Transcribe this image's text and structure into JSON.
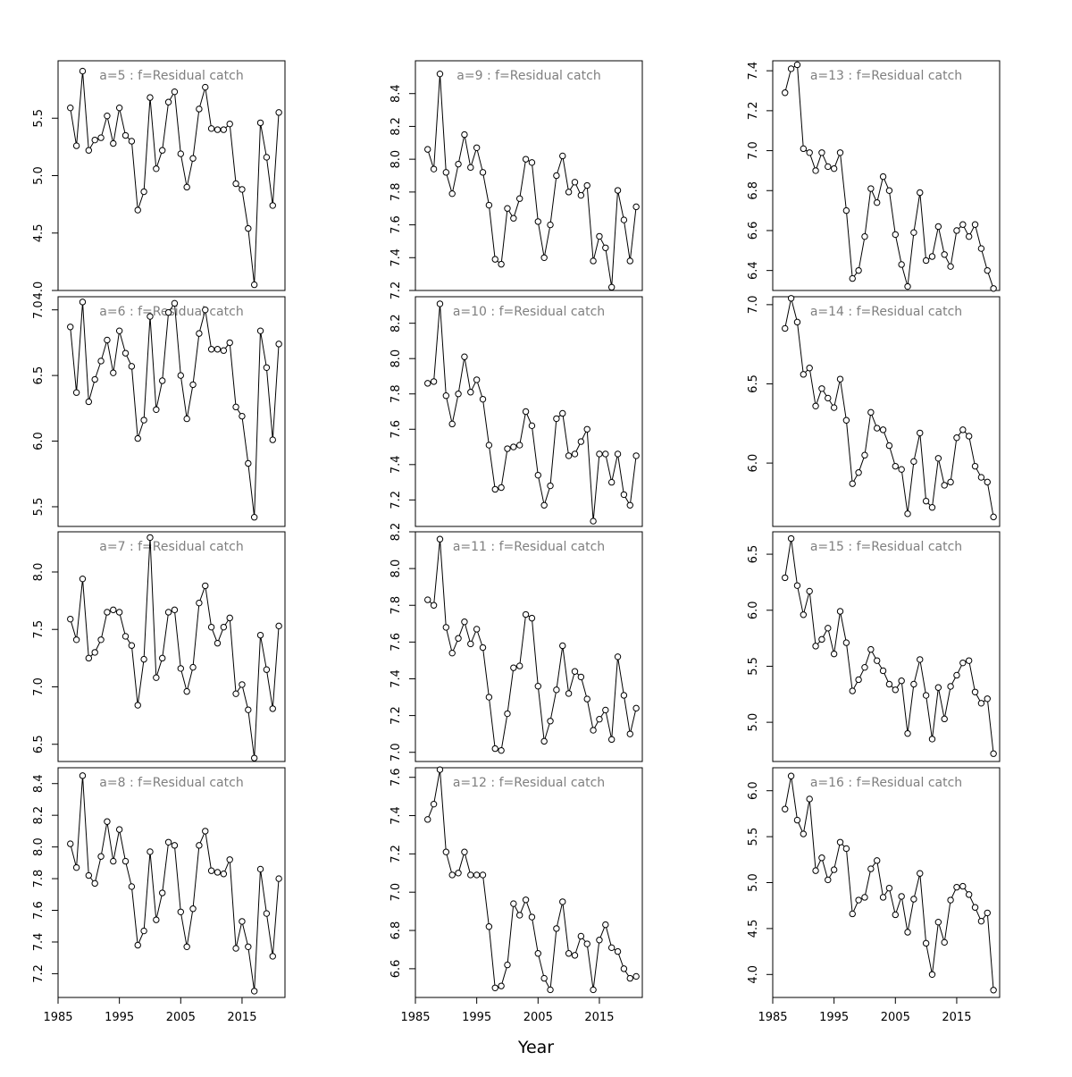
{
  "xlabel": "Year",
  "years": [
    1987,
    1988,
    1989,
    1990,
    1991,
    1992,
    1993,
    1994,
    1995,
    1996,
    1997,
    1998,
    1999,
    2000,
    2001,
    2002,
    2003,
    2004,
    2005,
    2006,
    2007,
    2008,
    2009,
    2010,
    2011,
    2012,
    2013,
    2014,
    2015,
    2016,
    2017,
    2018,
    2019,
    2020,
    2021
  ],
  "chart_data": [
    {
      "type": "line",
      "title": "a=5  :  f=Residual catch",
      "xlim": [
        1985,
        2022
      ],
      "ylim": [
        4.0,
        6.0
      ],
      "yticks": [
        4.0,
        4.5,
        5.0,
        5.5
      ],
      "xticks": [
        1985,
        1995,
        2005,
        2015
      ],
      "y": [
        5.59,
        5.26,
        5.91,
        5.22,
        5.31,
        5.33,
        5.52,
        5.28,
        5.59,
        5.35,
        5.3,
        4.7,
        4.86,
        5.68,
        5.06,
        5.22,
        5.64,
        5.73,
        5.19,
        4.9,
        5.15,
        5.58,
        5.77,
        5.41,
        5.4,
        5.4,
        5.45,
        4.93,
        4.88,
        4.54,
        4.05,
        5.46,
        5.16,
        4.74,
        5.55
      ]
    },
    {
      "type": "line",
      "title": "a=9  :  f=Residual catch",
      "xlim": [
        1985,
        2022
      ],
      "ylim": [
        7.2,
        8.6
      ],
      "yticks": [
        7.2,
        7.4,
        7.6,
        7.8,
        8.0,
        8.2,
        8.4
      ],
      "xticks": [
        1985,
        1995,
        2005,
        2015
      ],
      "y": [
        8.06,
        7.94,
        8.52,
        7.92,
        7.79,
        7.97,
        8.15,
        7.95,
        8.07,
        7.92,
        7.72,
        7.39,
        7.36,
        7.7,
        7.64,
        7.76,
        8.0,
        7.98,
        7.62,
        7.4,
        7.6,
        7.9,
        8.02,
        7.8,
        7.86,
        7.78,
        7.84,
        7.38,
        7.53,
        7.46,
        7.22,
        7.81,
        7.63,
        7.38,
        7.71
      ]
    },
    {
      "type": "line",
      "title": "a=13  :  f=Residual catch",
      "xlim": [
        1985,
        2022
      ],
      "ylim": [
        6.3,
        7.45
      ],
      "yticks": [
        6.4,
        6.6,
        6.8,
        7.0,
        7.2,
        7.4
      ],
      "xticks": [
        1985,
        1995,
        2005,
        2015
      ],
      "y": [
        7.29,
        7.41,
        7.43,
        7.01,
        6.99,
        6.9,
        6.99,
        6.92,
        6.91,
        6.99,
        6.7,
        6.36,
        6.4,
        6.57,
        6.81,
        6.74,
        6.87,
        6.8,
        6.58,
        6.43,
        6.32,
        6.59,
        6.79,
        6.45,
        6.47,
        6.62,
        6.48,
        6.42,
        6.6,
        6.63,
        6.57,
        6.63,
        6.51,
        6.4,
        6.31
      ]
    },
    {
      "type": "line",
      "title": "a=6  :  f=Residual catch",
      "xlim": [
        1985,
        2022
      ],
      "ylim": [
        5.35,
        7.1
      ],
      "yticks": [
        5.5,
        6.0,
        6.5,
        7.0
      ],
      "xticks": [
        1985,
        1995,
        2005,
        2015
      ],
      "y": [
        6.87,
        6.37,
        7.06,
        6.3,
        6.47,
        6.61,
        6.77,
        6.52,
        6.84,
        6.67,
        6.57,
        6.02,
        6.16,
        6.95,
        6.24,
        6.46,
        6.98,
        7.05,
        6.5,
        6.17,
        6.43,
        6.82,
        7.0,
        6.7,
        6.7,
        6.69,
        6.75,
        6.26,
        6.19,
        5.83,
        5.42,
        6.84,
        6.56,
        6.01,
        6.74
      ]
    },
    {
      "type": "line",
      "title": "a=10  :  f=Residual catch",
      "xlim": [
        1985,
        2022
      ],
      "ylim": [
        7.05,
        8.35
      ],
      "yticks": [
        7.2,
        7.4,
        7.6,
        7.8,
        8.0,
        8.2
      ],
      "xticks": [
        1985,
        1995,
        2005,
        2015
      ],
      "y": [
        7.86,
        7.87,
        8.31,
        7.79,
        7.63,
        7.8,
        8.01,
        7.81,
        7.88,
        7.77,
        7.51,
        7.26,
        7.27,
        7.49,
        7.5,
        7.51,
        7.7,
        7.62,
        7.34,
        7.17,
        7.28,
        7.66,
        7.69,
        7.45,
        7.46,
        7.53,
        7.6,
        7.08,
        7.46,
        7.46,
        7.3,
        7.46,
        7.23,
        7.17,
        7.45
      ]
    },
    {
      "type": "line",
      "title": "a=14  :  f=Residual catch",
      "xlim": [
        1985,
        2022
      ],
      "ylim": [
        5.6,
        7.05
      ],
      "yticks": [
        6.0,
        6.5,
        7.0
      ],
      "xticks": [
        1985,
        1995,
        2005,
        2015
      ],
      "y": [
        6.85,
        7.04,
        6.89,
        6.56,
        6.6,
        6.36,
        6.47,
        6.41,
        6.35,
        6.53,
        6.27,
        5.87,
        5.94,
        6.05,
        6.32,
        6.22,
        6.21,
        6.11,
        5.98,
        5.96,
        5.68,
        6.01,
        6.19,
        5.76,
        5.72,
        6.03,
        5.86,
        5.88,
        6.16,
        6.21,
        6.17,
        5.98,
        5.91,
        5.88,
        5.66
      ]
    },
    {
      "type": "line",
      "title": "a=7  :  f=Residual catch",
      "xlim": [
        1985,
        2022
      ],
      "ylim": [
        6.35,
        8.35
      ],
      "yticks": [
        6.5,
        7.0,
        7.5,
        8.0
      ],
      "xticks": [
        1985,
        1995,
        2005,
        2015
      ],
      "y": [
        7.59,
        7.41,
        7.94,
        7.25,
        7.3,
        7.41,
        7.65,
        7.67,
        7.65,
        7.44,
        7.36,
        6.84,
        7.24,
        8.3,
        7.08,
        7.25,
        7.65,
        7.67,
        7.16,
        6.96,
        7.17,
        7.73,
        7.88,
        7.52,
        7.38,
        7.52,
        7.6,
        6.94,
        7.02,
        6.8,
        6.38,
        7.45,
        7.15,
        6.81,
        7.53
      ]
    },
    {
      "type": "line",
      "title": "a=11  :  f=Residual catch",
      "xlim": [
        1985,
        2022
      ],
      "ylim": [
        6.95,
        8.2
      ],
      "yticks": [
        7.0,
        7.2,
        7.4,
        7.6,
        7.8,
        8.0,
        8.2
      ],
      "xticks": [
        1985,
        1995,
        2005,
        2015
      ],
      "y": [
        7.83,
        7.8,
        8.16,
        7.68,
        7.54,
        7.62,
        7.71,
        7.59,
        7.67,
        7.57,
        7.3,
        7.02,
        7.01,
        7.21,
        7.46,
        7.47,
        7.75,
        7.73,
        7.36,
        7.06,
        7.17,
        7.34,
        7.58,
        7.32,
        7.44,
        7.41,
        7.29,
        7.12,
        7.18,
        7.23,
        7.07,
        7.52,
        7.31,
        7.1,
        7.24
      ]
    },
    {
      "type": "line",
      "title": "a=15  :  f=Residual catch",
      "xlim": [
        1985,
        2022
      ],
      "ylim": [
        4.65,
        6.7
      ],
      "yticks": [
        5.0,
        5.5,
        6.0,
        6.5
      ],
      "xticks": [
        1985,
        1995,
        2005,
        2015
      ],
      "y": [
        6.29,
        6.64,
        6.22,
        5.96,
        6.17,
        5.68,
        5.74,
        5.84,
        5.61,
        5.99,
        5.71,
        5.28,
        5.38,
        5.49,
        5.65,
        5.55,
        5.46,
        5.34,
        5.29,
        5.37,
        4.9,
        5.34,
        5.56,
        5.24,
        4.85,
        5.31,
        5.03,
        5.32,
        5.42,
        5.53,
        5.55,
        5.27,
        5.17,
        5.21,
        4.72
      ]
    },
    {
      "type": "line",
      "title": "a=8  :  f=Residual catch",
      "xlim": [
        1985,
        2022
      ],
      "ylim": [
        7.05,
        8.5
      ],
      "yticks": [
        7.2,
        7.4,
        7.6,
        7.8,
        8.0,
        8.2,
        8.4
      ],
      "xticks": [
        1985,
        1995,
        2005,
        2015
      ],
      "y": [
        8.02,
        7.87,
        8.45,
        7.82,
        7.77,
        7.94,
        8.16,
        7.91,
        8.11,
        7.91,
        7.75,
        7.38,
        7.47,
        7.97,
        7.54,
        7.71,
        8.03,
        8.01,
        7.59,
        7.37,
        7.61,
        8.01,
        8.1,
        7.85,
        7.84,
        7.83,
        7.92,
        7.36,
        7.53,
        7.37,
        7.09,
        7.86,
        7.58,
        7.31,
        7.8
      ]
    },
    {
      "type": "line",
      "title": "a=12  :  f=Residual catch",
      "xlim": [
        1985,
        2022
      ],
      "ylim": [
        6.45,
        7.65
      ],
      "yticks": [
        6.6,
        6.8,
        7.0,
        7.2,
        7.4,
        7.6
      ],
      "xticks": [
        1985,
        1995,
        2005,
        2015
      ],
      "y": [
        7.38,
        7.46,
        7.64,
        7.21,
        7.09,
        7.1,
        7.21,
        7.09,
        7.09,
        7.09,
        6.82,
        6.5,
        6.51,
        6.62,
        6.94,
        6.88,
        6.96,
        6.87,
        6.68,
        6.55,
        6.49,
        6.81,
        6.95,
        6.68,
        6.67,
        6.77,
        6.73,
        6.49,
        6.75,
        6.83,
        6.71,
        6.69,
        6.6,
        6.55,
        6.56
      ]
    },
    {
      "type": "line",
      "title": "a=16  :  f=Residual catch",
      "xlim": [
        1985,
        2022
      ],
      "ylim": [
        3.75,
        6.25
      ],
      "yticks": [
        4.0,
        4.5,
        5.0,
        5.5,
        6.0
      ],
      "xticks": [
        1985,
        1995,
        2005,
        2015
      ],
      "y": [
        5.8,
        6.16,
        5.68,
        5.53,
        5.91,
        5.13,
        5.27,
        5.03,
        5.14,
        5.44,
        5.37,
        4.66,
        4.81,
        4.84,
        5.15,
        5.24,
        4.84,
        4.94,
        4.65,
        4.85,
        4.46,
        4.82,
        5.1,
        4.34,
        4.0,
        4.57,
        4.35,
        4.81,
        4.95,
        4.96,
        4.87,
        4.73,
        4.58,
        4.67,
        3.83
      ]
    }
  ]
}
